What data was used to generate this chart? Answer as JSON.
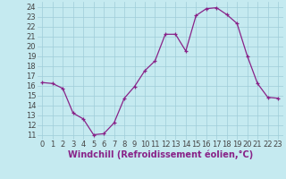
{
  "x": [
    0,
    1,
    2,
    3,
    4,
    5,
    6,
    7,
    8,
    9,
    10,
    11,
    12,
    13,
    14,
    15,
    16,
    17,
    18,
    19,
    20,
    21,
    22,
    23
  ],
  "y": [
    16.3,
    16.2,
    15.7,
    13.2,
    12.6,
    11.0,
    11.1,
    12.2,
    14.7,
    15.9,
    17.5,
    18.5,
    21.2,
    21.2,
    19.5,
    23.1,
    23.8,
    23.9,
    23.2,
    22.3,
    19.0,
    16.2,
    14.8,
    14.7
  ],
  "line_color": "#882288",
  "bg_color": "#C5EAF0",
  "grid_color": "#9FCDD8",
  "xlabel": "Windchill (Refroidissement éolien,°C)",
  "ylabel_ticks": [
    11,
    12,
    13,
    14,
    15,
    16,
    17,
    18,
    19,
    20,
    21,
    22,
    23,
    24
  ],
  "ylim": [
    10.5,
    24.5
  ],
  "xlim": [
    -0.5,
    23.5
  ],
  "tick_fontsize": 6,
  "label_fontsize": 7
}
